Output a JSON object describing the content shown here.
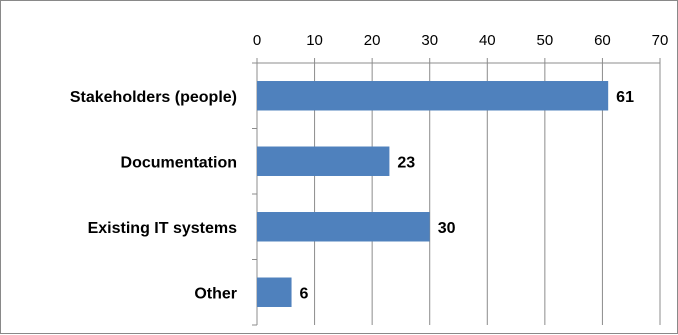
{
  "chart_data": {
    "type": "bar",
    "orientation": "horizontal",
    "categories": [
      "Stakeholders (people)",
      "Documentation",
      "Existing IT systems",
      "Other"
    ],
    "values": [
      61,
      23,
      30,
      6
    ],
    "title": "",
    "xlabel": "",
    "ylabel": "",
    "xlim": [
      0,
      70
    ],
    "ticks": [
      "0",
      "10",
      "20",
      "30",
      "40",
      "50",
      "60",
      "70"
    ],
    "tick_values": [
      0,
      10,
      20,
      30,
      40,
      50,
      60,
      70
    ],
    "data_labels": [
      "61",
      "23",
      "30",
      "6"
    ],
    "grid": true,
    "legend": "none",
    "bar_color": "#4f81bd",
    "grid_color": "#8c8c8c"
  }
}
